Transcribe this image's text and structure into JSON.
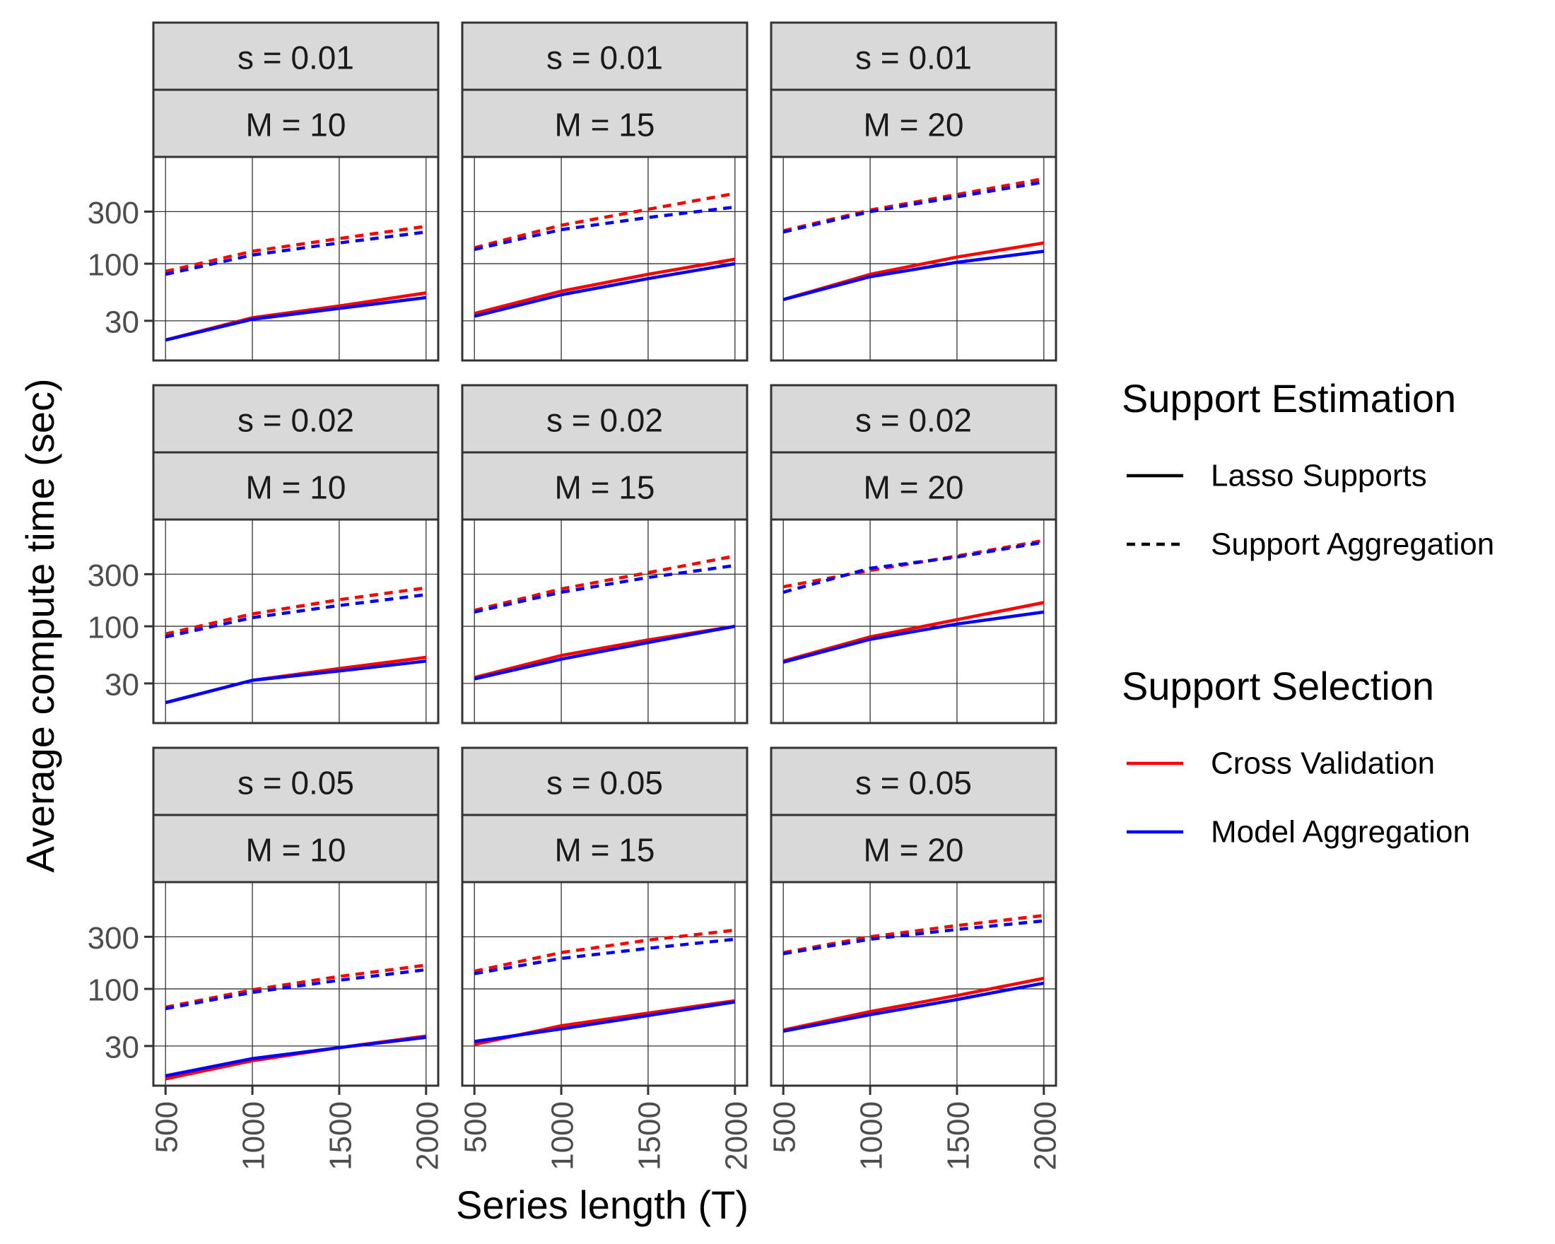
{
  "chart_data": {
    "type": "line",
    "xlabel": "Series length (T)",
    "ylabel": "Average compute time (sec)",
    "x": [
      500,
      1000,
      1500,
      2000
    ],
    "x_ticks": [
      "500",
      "1000",
      "1500",
      "2000"
    ],
    "xlim": [
      430,
      2070
    ],
    "y_scale": "log",
    "y_ticks": [
      30,
      100,
      300
    ],
    "y_tick_labels": [
      "30",
      "100",
      "300"
    ],
    "ylim": [
      13,
      950
    ],
    "grid": true,
    "colors": {
      "Cross Validation": "#ff0000",
      "Model Aggregation": "#0000ff",
      "Lasso Supports": "solid",
      "Support Aggregation": "dashed"
    },
    "legend": {
      "placement": "right",
      "groups": [
        {
          "title": "Support Estimation",
          "items": [
            {
              "label": "Lasso Supports",
              "linestyle": "solid"
            },
            {
              "label": "Support Aggregation",
              "linestyle": "dashed"
            }
          ]
        },
        {
          "title": "Support Selection",
          "items": [
            {
              "label": "Cross Validation",
              "color": "#ff0000"
            },
            {
              "label": "Model Aggregation",
              "color": "#0000ff"
            }
          ]
        }
      ]
    },
    "panels": [
      {
        "s_label": "s = 0.01",
        "m_label": "M = 10",
        "series": [
          {
            "estimation": "Support Aggregation",
            "selection": "Cross Validation",
            "values": [
              85,
              130,
              170,
              220
            ]
          },
          {
            "estimation": "Support Aggregation",
            "selection": "Model Aggregation",
            "values": [
              80,
              120,
              155,
              195
            ]
          },
          {
            "estimation": "Lasso Supports",
            "selection": "Cross Validation",
            "values": [
              20,
              32,
              41,
              54
            ]
          },
          {
            "estimation": "Lasso Supports",
            "selection": "Model Aggregation",
            "values": [
              20,
              31,
              39,
              49
            ]
          }
        ]
      },
      {
        "s_label": "s = 0.01",
        "m_label": "M = 15",
        "series": [
          {
            "estimation": "Support Aggregation",
            "selection": "Cross Validation",
            "values": [
              140,
              225,
              315,
              440
            ]
          },
          {
            "estimation": "Support Aggregation",
            "selection": "Model Aggregation",
            "values": [
              135,
              205,
              265,
              330
            ]
          },
          {
            "estimation": "Lasso Supports",
            "selection": "Cross Validation",
            "values": [
              35,
              56,
              80,
              110
            ]
          },
          {
            "estimation": "Lasso Supports",
            "selection": "Model Aggregation",
            "values": [
              33,
              52,
              73,
              100
            ]
          }
        ]
      },
      {
        "s_label": "s = 0.01",
        "m_label": "M = 20",
        "series": [
          {
            "estimation": "Support Aggregation",
            "selection": "Cross Validation",
            "values": [
              200,
              310,
              430,
              600
            ]
          },
          {
            "estimation": "Support Aggregation",
            "selection": "Model Aggregation",
            "values": [
              195,
              300,
              410,
              560
            ]
          },
          {
            "estimation": "Lasso Supports",
            "selection": "Cross Validation",
            "values": [
              47,
              80,
              115,
              155
            ]
          },
          {
            "estimation": "Lasso Supports",
            "selection": "Model Aggregation",
            "values": [
              47,
              76,
              103,
              130
            ]
          }
        ]
      },
      {
        "s_label": "s = 0.02",
        "m_label": "M = 10",
        "series": [
          {
            "estimation": "Support Aggregation",
            "selection": "Cross Validation",
            "values": [
              85,
              130,
              175,
              225
            ]
          },
          {
            "estimation": "Support Aggregation",
            "selection": "Model Aggregation",
            "values": [
              80,
              120,
              155,
              195
            ]
          },
          {
            "estimation": "Lasso Supports",
            "selection": "Cross Validation",
            "values": [
              20,
              32,
              41,
              52
            ]
          },
          {
            "estimation": "Lasso Supports",
            "selection": "Model Aggregation",
            "values": [
              20,
              32,
              39,
              48
            ]
          }
        ]
      },
      {
        "s_label": "s = 0.02",
        "m_label": "M = 15",
        "series": [
          {
            "estimation": "Support Aggregation",
            "selection": "Cross Validation",
            "values": [
              140,
              220,
              310,
              440
            ]
          },
          {
            "estimation": "Support Aggregation",
            "selection": "Model Aggregation",
            "values": [
              135,
              205,
              280,
              360
            ]
          },
          {
            "estimation": "Lasso Supports",
            "selection": "Cross Validation",
            "values": [
              34,
              54,
              75,
              100
            ]
          },
          {
            "estimation": "Lasso Supports",
            "selection": "Model Aggregation",
            "values": [
              33,
              50,
              71,
              100
            ]
          }
        ]
      },
      {
        "s_label": "s = 0.02",
        "m_label": "M = 20",
        "series": [
          {
            "estimation": "Support Aggregation",
            "selection": "Cross Validation",
            "values": [
              230,
              325,
              440,
              610
            ]
          },
          {
            "estimation": "Support Aggregation",
            "selection": "Model Aggregation",
            "values": [
              205,
              340,
              430,
              590
            ]
          },
          {
            "estimation": "Lasso Supports",
            "selection": "Cross Validation",
            "values": [
              48,
              80,
              115,
              165
            ]
          },
          {
            "estimation": "Lasso Supports",
            "selection": "Model Aggregation",
            "values": [
              47,
              76,
              105,
              135
            ]
          }
        ]
      },
      {
        "s_label": "s = 0.05",
        "m_label": "M = 10",
        "series": [
          {
            "estimation": "Support Aggregation",
            "selection": "Cross Validation",
            "values": [
              68,
              98,
              130,
              165
            ]
          },
          {
            "estimation": "Support Aggregation",
            "selection": "Model Aggregation",
            "values": [
              66,
              93,
              120,
              150
            ]
          },
          {
            "estimation": "Lasso Supports",
            "selection": "Cross Validation",
            "values": [
              15,
              22,
              29,
              37
            ]
          },
          {
            "estimation": "Lasso Supports",
            "selection": "Model Aggregation",
            "values": [
              16,
              23,
              29,
              36
            ]
          }
        ]
      },
      {
        "s_label": "s = 0.05",
        "m_label": "M = 15",
        "series": [
          {
            "estimation": "Support Aggregation",
            "selection": "Cross Validation",
            "values": [
              145,
              215,
              280,
              345
            ]
          },
          {
            "estimation": "Support Aggregation",
            "selection": "Model Aggregation",
            "values": [
              138,
              190,
              235,
              285
            ]
          },
          {
            "estimation": "Lasso Supports",
            "selection": "Cross Validation",
            "values": [
              31,
              46,
              60,
              78
            ]
          },
          {
            "estimation": "Lasso Supports",
            "selection": "Model Aggregation",
            "values": [
              33,
              43,
              57,
              76
            ]
          }
        ]
      },
      {
        "s_label": "s = 0.05",
        "m_label": "M = 20",
        "series": [
          {
            "estimation": "Support Aggregation",
            "selection": "Cross Validation",
            "values": [
              215,
              300,
              380,
              470
            ]
          },
          {
            "estimation": "Support Aggregation",
            "selection": "Model Aggregation",
            "values": [
              210,
              285,
              350,
              420
            ]
          },
          {
            "estimation": "Lasso Supports",
            "selection": "Cross Validation",
            "values": [
              42,
              62,
              87,
              125
            ]
          },
          {
            "estimation": "Lasso Supports",
            "selection": "Model Aggregation",
            "values": [
              41,
              58,
              80,
              113
            ]
          }
        ]
      }
    ]
  }
}
